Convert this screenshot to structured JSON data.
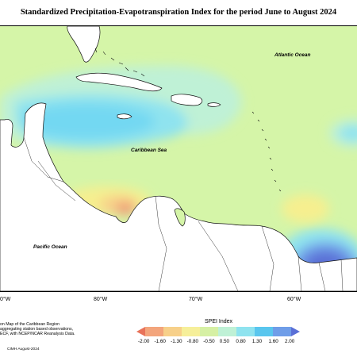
{
  "title": "Standardized Precipitation-Evapotranspiration Index for the period June to August 2024",
  "map_labels": {
    "atlantic": "Atlantic Ocean",
    "caribbean": "Caribbean Sea",
    "pacific": "Pacific Ocean"
  },
  "longitude_ticks": [
    "0°W",
    "80°W",
    "70°W",
    "60°W"
  ],
  "notes": [
    "on Map of the Caribbean Region",
    "aggregating station based observations,",
    "ECF, with NCEP/NCAR Reanalysis Data."
  ],
  "footer": "CIMH August-2024",
  "legend": {
    "title": "SPEI Index",
    "labels": [
      "-2.00",
      "-1.60",
      "-1.30",
      "-0.80",
      "-0.50",
      "0.50",
      "0.80",
      "1.30",
      "1.60",
      "2.00"
    ],
    "colors": [
      "#e8735a",
      "#f3a57c",
      "#f7d08a",
      "#f6ef9a",
      "#d6f0a4",
      "#bff1d6",
      "#8fe3ef",
      "#59c6ee",
      "#6f9de8",
      "#5a6fd6"
    ]
  },
  "colors": {
    "near_normal": "#d5f5a8",
    "wet": "#73d8f2",
    "very_wet": "#6a8be8",
    "dry": "#f6ef8f",
    "very_dry": "#f09a76",
    "land": "#ffffff"
  }
}
